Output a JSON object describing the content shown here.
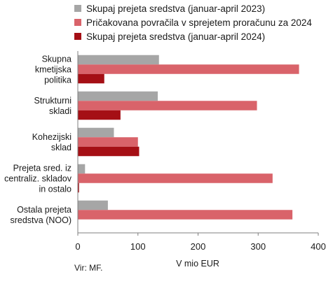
{
  "chart_data": {
    "type": "bar",
    "orientation": "horizontal",
    "categories": [
      [
        "Skupna",
        "kmetijska",
        "politika"
      ],
      [
        "Strukturni",
        "skladi"
      ],
      [
        "Kohezijski",
        "sklad"
      ],
      [
        "Prejeta sred. iz",
        "centraliz. skladov",
        "in ostalo"
      ],
      [
        "Ostala prejeta",
        "sredstva (NOO)"
      ]
    ],
    "series": [
      {
        "name": "Skupaj prejeta sredstva (januar-april 2023)",
        "color": "#a6a6a6",
        "values": [
          135,
          133,
          60,
          12,
          50
        ]
      },
      {
        "name": "Pričakovana povračila v sprejetem proračunu za 2024",
        "color": "#d9636a",
        "values": [
          368,
          298,
          100,
          324,
          357
        ]
      },
      {
        "name": "Skupaj prejeta sredstva (januar-april 2024)",
        "color": "#a50f15",
        "values": [
          44,
          71,
          102,
          2,
          0
        ]
      }
    ],
    "xlabel": "V mio EUR",
    "xlim": [
      0,
      400
    ],
    "xticks": [
      0,
      100,
      200,
      300,
      400
    ],
    "grid": false,
    "legend_position": "top"
  },
  "source_note": "Vir: MF."
}
